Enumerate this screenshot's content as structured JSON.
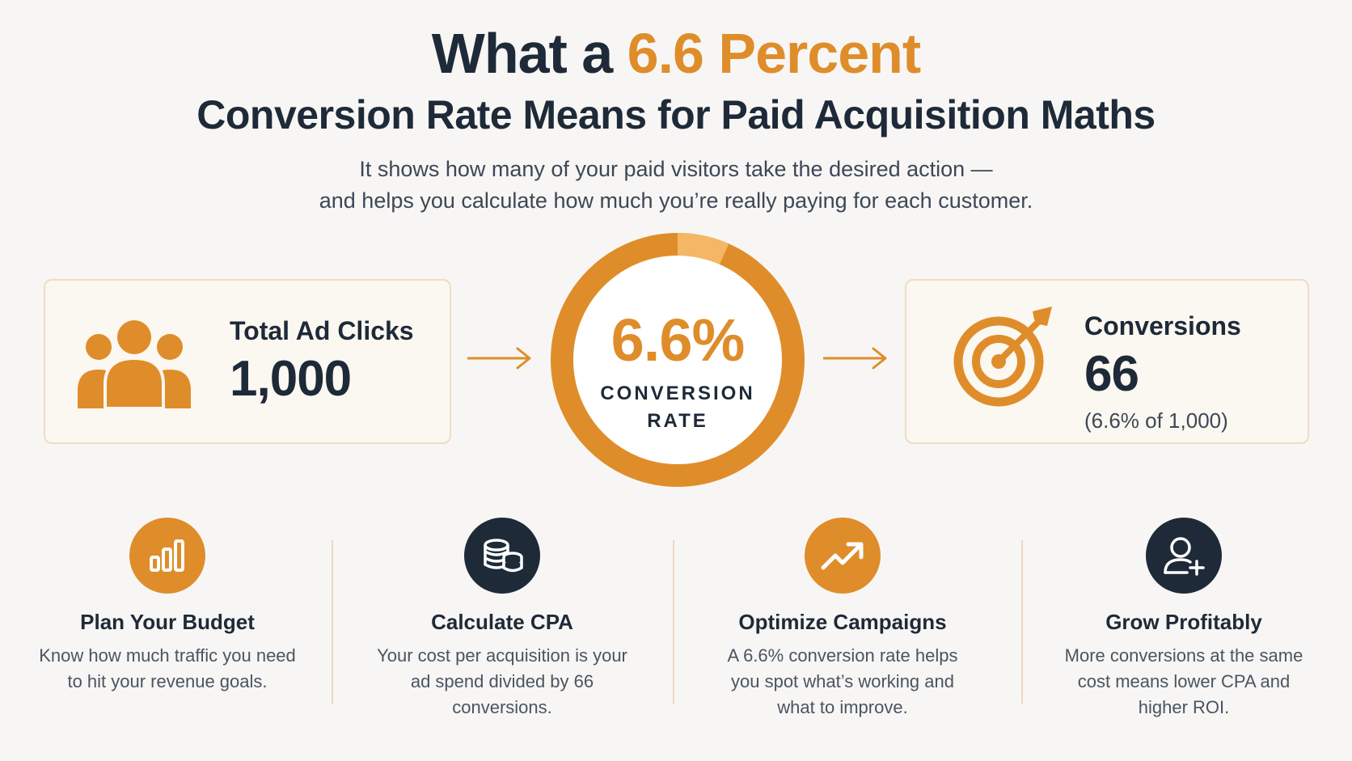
{
  "header": {
    "title_prefix": "What a ",
    "title_accent": "6.6 Percent",
    "title_line2": "Conversion Rate Means for Paid Acquisition Maths",
    "subtitle_line1": "It shows how many of your paid visitors take the desired action —",
    "subtitle_line2": "and helps you calculate how much you’re really paying for each customer."
  },
  "clicks_card": {
    "label": "Total Ad Clicks",
    "value": "1,000",
    "icon": "users-group-icon"
  },
  "rate_ring": {
    "value": "6.6%",
    "label_line1": "CONVERSION",
    "label_line2": "RATE",
    "fraction": 0.066
  },
  "conversions_card": {
    "label": "Conversions",
    "value": "66",
    "note": "(6.6% of 1,000)",
    "icon": "target-arrow-icon"
  },
  "features": [
    {
      "icon": "bar-chart-icon",
      "title": "Plan Your Budget",
      "text": "Know how much traffic you need to hit your revenue goals."
    },
    {
      "icon": "coins-icon",
      "title": "Calculate CPA",
      "text": "Your cost per acquisition is your ad spend divided by 66 conversions."
    },
    {
      "icon": "trend-up-icon",
      "title": "Optimize Campaigns",
      "text": "A 6.6% conversion rate helps you spot what’s working and what to improve."
    },
    {
      "icon": "user-add-icon",
      "title": "Grow Profitably",
      "text": "More conversions at the same cost means lower CPA and higher ROI."
    }
  ],
  "colors": {
    "accent": "#df8d2a",
    "accent_light": "#f3b766",
    "dark": "#1e2a38",
    "card_bg": "#fbf7f1",
    "card_border": "#f0dcc3"
  }
}
